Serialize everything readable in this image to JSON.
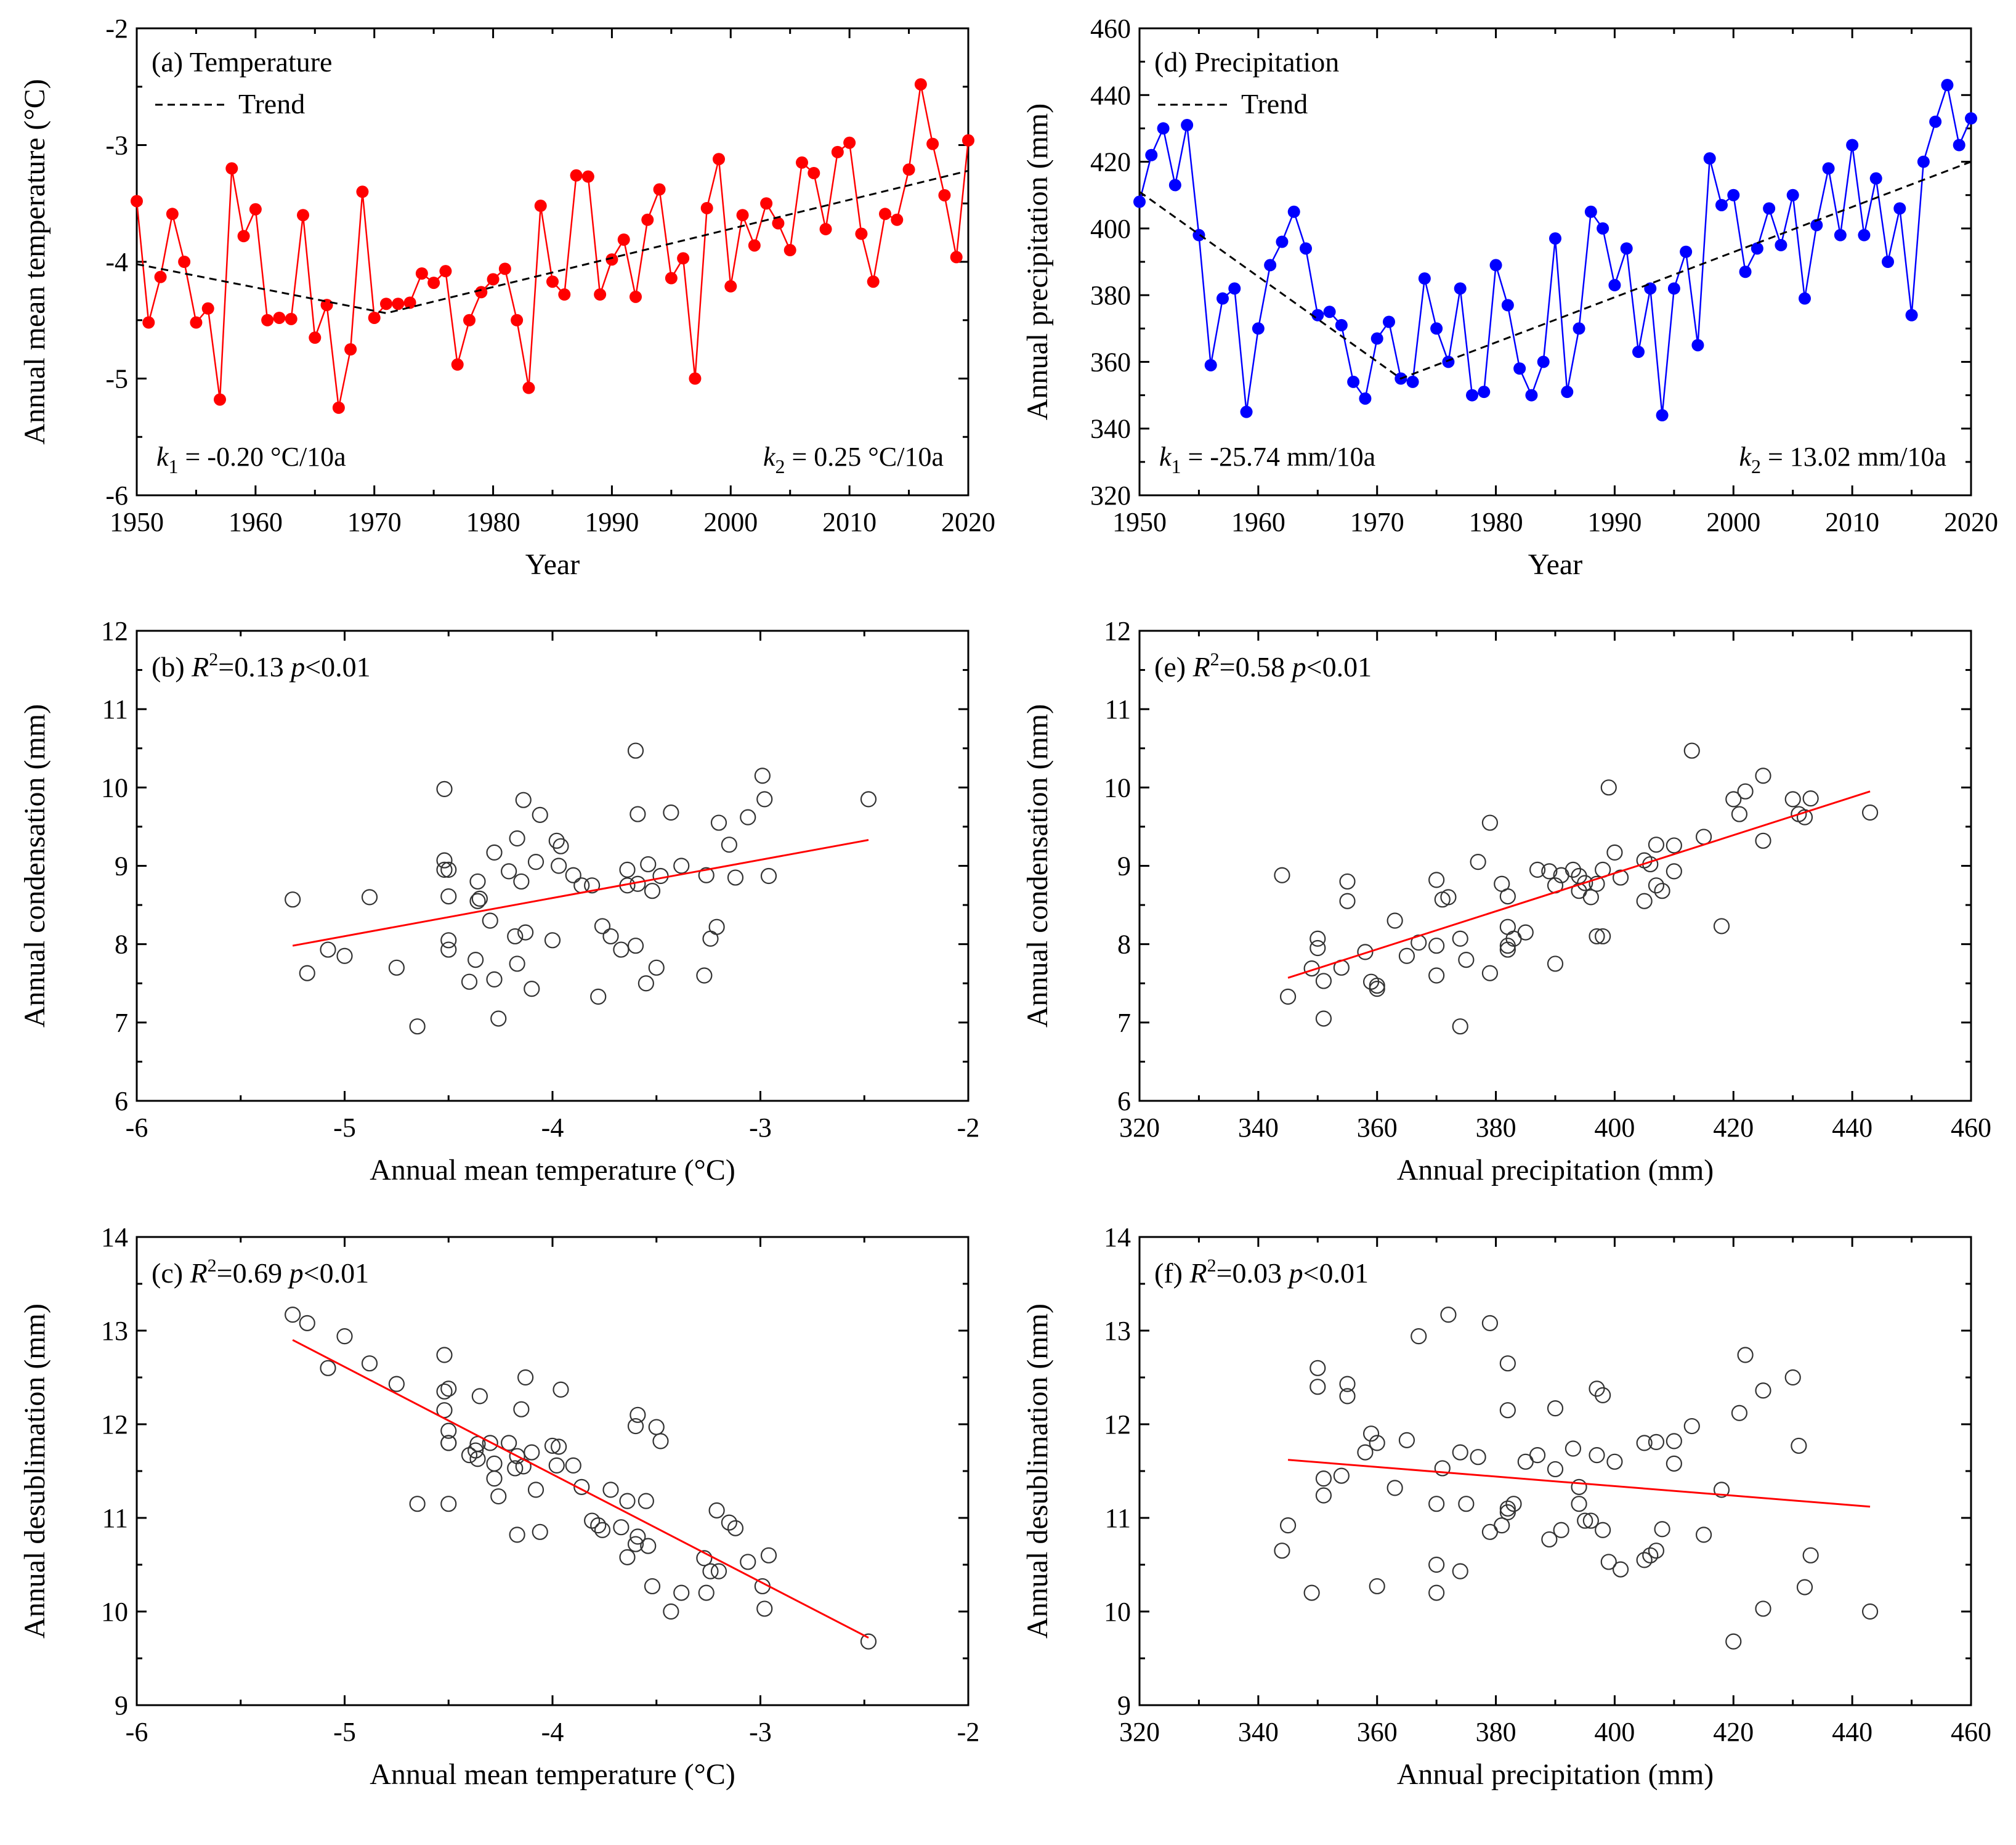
{
  "figure": "Six-panel climate figure",
  "chart_data": [
    {
      "id": "a",
      "type": "line",
      "panel_label": "(a) Temperature",
      "legend": {
        "series": "Trend",
        "placement": "top-left"
      },
      "xlabel": "Year",
      "ylabel": "Annual mean temperature (°C)",
      "xlim": [
        1950,
        2020
      ],
      "ylim": [
        -6,
        -2
      ],
      "xticks": [
        1950,
        1960,
        1970,
        1980,
        1990,
        2000,
        2010,
        2020
      ],
      "yticks": [
        -6,
        -5,
        -4,
        -3,
        -2
      ],
      "color": "#ff0000",
      "x": [
        1950,
        1951,
        1952,
        1953,
        1954,
        1955,
        1956,
        1957,
        1958,
        1959,
        1960,
        1961,
        1962,
        1963,
        1964,
        1965,
        1966,
        1967,
        1968,
        1969,
        1970,
        1971,
        1972,
        1973,
        1974,
        1975,
        1976,
        1977,
        1978,
        1979,
        1980,
        1981,
        1982,
        1983,
        1984,
        1985,
        1986,
        1987,
        1988,
        1989,
        1990,
        1991,
        1992,
        1993,
        1994,
        1995,
        1996,
        1997,
        1998,
        1999,
        2000,
        2001,
        2002,
        2003,
        2004,
        2005,
        2006,
        2007,
        2008,
        2009,
        2010,
        2011,
        2012,
        2013,
        2014,
        2015,
        2016,
        2017,
        2018,
        2019,
        2020
      ],
      "y": [
        -3.48,
        -4.52,
        -4.13,
        -3.59,
        -4.0,
        -4.52,
        -4.4,
        -5.18,
        -3.2,
        -3.78,
        -3.55,
        -4.5,
        -4.48,
        -4.49,
        -3.6,
        -4.65,
        -4.37,
        -5.25,
        -4.75,
        -3.4,
        -4.48,
        -4.36,
        -4.36,
        -4.35,
        -4.1,
        -4.18,
        -4.08,
        -4.88,
        -4.5,
        -4.26,
        -4.15,
        -4.06,
        -4.5,
        -5.08,
        -3.52,
        -4.17,
        -4.28,
        -3.26,
        -3.27,
        -4.28,
        -3.98,
        -3.81,
        -4.3,
        -3.64,
        -3.38,
        -4.14,
        -3.97,
        -5.0,
        -3.54,
        -3.12,
        -4.21,
        -3.6,
        -3.86,
        -3.5,
        -3.67,
        -3.9,
        -3.15,
        -3.24,
        -3.72,
        -3.06,
        -2.98,
        -3.76,
        -4.17,
        -3.59,
        -3.64,
        -3.21,
        -2.48,
        -2.99,
        -3.43,
        -3.96,
        -2.96
      ],
      "trend": {
        "x": [
          1950,
          1971,
          2020
        ],
        "y": [
          -4.02,
          -4.44,
          -3.22
        ]
      },
      "notes": [
        {
          "k": "k",
          "sub": "1",
          "text": " = -0.20 °C/10a"
        },
        {
          "k": "k",
          "sub": "2",
          "text": " = 0.25 °C/10a"
        }
      ]
    },
    {
      "id": "d",
      "type": "line",
      "panel_label": "(d) Precipitation",
      "legend": {
        "series": "Trend",
        "placement": "top-left"
      },
      "xlabel": "Year",
      "ylabel": "Annual precipitation (mm)",
      "xlim": [
        1950,
        2020
      ],
      "ylim": [
        320,
        460
      ],
      "xticks": [
        1950,
        1960,
        1970,
        1980,
        1990,
        2000,
        2010,
        2020
      ],
      "yticks": [
        320,
        340,
        360,
        380,
        400,
        420,
        440,
        460
      ],
      "color": "#0000ff",
      "x": [
        1950,
        1951,
        1952,
        1953,
        1954,
        1955,
        1956,
        1957,
        1958,
        1959,
        1960,
        1961,
        1962,
        1963,
        1964,
        1965,
        1966,
        1967,
        1968,
        1969,
        1970,
        1971,
        1972,
        1973,
        1974,
        1975,
        1976,
        1977,
        1978,
        1979,
        1980,
        1981,
        1982,
        1983,
        1984,
        1985,
        1986,
        1987,
        1988,
        1989,
        1990,
        1991,
        1992,
        1993,
        1994,
        1995,
        1996,
        1997,
        1998,
        1999,
        2000,
        2001,
        2002,
        2003,
        2004,
        2005,
        2006,
        2007,
        2008,
        2009,
        2010,
        2011,
        2012,
        2013,
        2014,
        2015,
        2016,
        2017,
        2018,
        2019,
        2020
      ],
      "y": [
        408,
        422,
        430,
        413,
        431,
        398,
        359,
        379,
        382,
        345,
        370,
        389,
        396,
        405,
        394,
        374,
        375,
        371,
        354,
        349,
        367,
        372,
        355,
        354,
        385,
        370,
        360,
        382,
        350,
        351,
        389,
        377,
        358,
        350,
        360,
        397,
        351,
        370,
        405,
        400,
        383,
        394,
        363,
        382,
        344,
        382,
        393,
        365,
        421,
        407,
        410,
        387,
        394,
        406,
        395,
        410,
        379,
        401,
        418,
        398,
        425,
        398,
        415,
        390,
        406,
        374,
        420,
        432,
        443,
        425,
        433
      ],
      "trend": {
        "x": [
          1950,
          1972,
          2020
        ],
        "y": [
          411,
          355,
          420
        ]
      },
      "notes": [
        {
          "k": "k",
          "sub": "1",
          "text": " = -25.74 mm/10a"
        },
        {
          "k": "k",
          "sub": "2",
          "text": " = 13.02 mm/10a"
        }
      ]
    },
    {
      "id": "b",
      "type": "scatter",
      "panel_label": "(b) ",
      "stats": {
        "r2": "=0.13",
        "p": "<0.01"
      },
      "xlabel": "Annual mean temperature (°C)",
      "ylabel": "Annual condensation (mm)",
      "xlim": [
        -6,
        -2
      ],
      "ylim": [
        6,
        12
      ],
      "xticks": [
        -6,
        -5,
        -4,
        -3,
        -2
      ],
      "yticks": [
        6,
        7,
        8,
        9,
        10,
        11,
        12
      ],
      "fit": {
        "x": [
          -5.25,
          -2.48
        ],
        "y": [
          7.98,
          9.33
        ]
      },
      "x": [
        -5.25,
        -5.18,
        -5.08,
        -5.0,
        -4.88,
        -4.75,
        -4.65,
        -4.52,
        -4.52,
        -4.52,
        -4.5,
        -4.5,
        -4.5,
        -4.5,
        -4.4,
        -4.37,
        -4.36,
        -4.36,
        -4.35,
        -4.3,
        -4.28,
        -4.28,
        -4.26,
        -4.21,
        -4.18,
        -4.17,
        -4.17,
        -4.15,
        -4.14,
        -4.13,
        -4.1,
        -4.08,
        -4.06,
        -4.0,
        -3.98,
        -3.97,
        -3.96,
        -3.9,
        -3.86,
        -3.81,
        -3.78,
        -3.76,
        -3.72,
        -3.67,
        -3.64,
        -3.64,
        -3.6,
        -3.6,
        -3.59,
        -3.59,
        -3.55,
        -3.54,
        -3.52,
        -3.5,
        -3.48,
        -3.43,
        -3.38,
        -3.27,
        -3.26,
        -3.24,
        -3.21,
        -3.2,
        -3.15,
        -3.12,
        -3.06,
        -2.99,
        -2.98,
        -2.96,
        -2.48
      ],
      "y": [
        8.57,
        7.63,
        7.93,
        7.85,
        8.6,
        7.7,
        6.95,
        9.98,
        9.07,
        8.95,
        8.05,
        7.93,
        8.61,
        8.95,
        7.52,
        7.8,
        8.8,
        8.55,
        8.58,
        8.3,
        9.17,
        7.55,
        7.05,
        8.93,
        8.1,
        9.35,
        7.75,
        8.8,
        9.84,
        8.15,
        7.43,
        9.05,
        9.65,
        8.05,
        9.32,
        9.0,
        9.25,
        8.88,
        8.75,
        8.75,
        7.33,
        8.23,
        8.1,
        7.93,
        8.95,
        8.75,
        10.47,
        7.98,
        9.66,
        8.77,
        7.5,
        9.02,
        8.68,
        7.7,
        8.87,
        9.68,
        9.0,
        7.6,
        8.88,
        8.07,
        8.22,
        9.55,
        9.27,
        8.85,
        9.62,
        10.15,
        9.85,
        8.87,
        9.85
      ]
    },
    {
      "id": "e",
      "type": "scatter",
      "panel_label": "(e) ",
      "stats": {
        "r2": "=0.58",
        "p": "<0.01"
      },
      "xlabel": "Annual precipitation (mm)",
      "ylabel": "Annual condensation (mm)",
      "xlim": [
        320,
        460
      ],
      "ylim": [
        6,
        12
      ],
      "xticks": [
        320,
        340,
        360,
        380,
        400,
        420,
        440,
        460
      ],
      "yticks": [
        6,
        7,
        8,
        9,
        10,
        11,
        12
      ],
      "fit": {
        "x": [
          345,
          443
        ],
        "y": [
          7.57,
          9.95
        ]
      },
      "x": [
        344,
        345,
        349,
        350,
        350,
        351,
        351,
        354,
        355,
        355,
        358,
        359,
        360,
        360,
        363,
        365,
        367,
        370,
        370,
        370,
        371,
        372,
        374,
        374,
        375,
        377,
        379,
        379,
        381,
        382,
        382,
        382,
        382,
        383,
        385,
        387,
        389,
        390,
        390,
        391,
        393,
        394,
        394,
        395,
        396,
        397,
        397,
        398,
        398,
        399,
        400,
        401,
        405,
        405,
        406,
        407,
        407,
        408,
        410,
        410,
        413,
        415,
        418,
        420,
        421,
        422,
        425,
        425,
        430,
        431,
        432,
        433,
        443
      ],
      "y": [
        8.88,
        7.33,
        7.69,
        7.95,
        8.07,
        7.05,
        7.53,
        7.7,
        8.55,
        8.8,
        7.9,
        7.52,
        7.47,
        7.43,
        8.3,
        7.85,
        8.02,
        7.6,
        8.82,
        7.98,
        8.57,
        8.6,
        8.07,
        6.95,
        7.8,
        9.05,
        7.63,
        9.55,
        8.77,
        8.61,
        8.22,
        7.93,
        7.98,
        8.07,
        8.15,
        8.95,
        8.93,
        7.75,
        8.75,
        8.88,
        8.95,
        8.87,
        8.68,
        8.78,
        8.6,
        8.1,
        8.77,
        8.1,
        8.95,
        10.0,
        9.17,
        8.85,
        9.07,
        8.55,
        9.02,
        8.75,
        9.27,
        8.68,
        9.26,
        8.93,
        10.47,
        9.37,
        8.23,
        9.85,
        9.66,
        9.95,
        9.32,
        10.15,
        9.85,
        9.66,
        9.62,
        9.86,
        9.68
      ]
    },
    {
      "id": "c",
      "type": "scatter",
      "panel_label": "(c) ",
      "stats": {
        "r2": "=0.69",
        "p": "<0.01"
      },
      "xlabel": "Annual mean temperature (°C)",
      "ylabel": "Annual desublimation (mm)",
      "xlim": [
        -6,
        -2
      ],
      "ylim": [
        9,
        14
      ],
      "xticks": [
        -6,
        -5,
        -4,
        -3,
        -2
      ],
      "yticks": [
        9,
        10,
        11,
        12,
        13,
        14
      ],
      "fit": {
        "x": [
          -5.25,
          -2.48
        ],
        "y": [
          12.9,
          9.72
        ]
      },
      "x": [
        -5.25,
        -5.18,
        -5.08,
        -5.0,
        -4.88,
        -4.75,
        -4.65,
        -4.52,
        -4.52,
        -4.52,
        -4.5,
        -4.5,
        -4.5,
        -4.5,
        -4.5,
        -4.4,
        -4.37,
        -4.36,
        -4.36,
        -4.35,
        -4.3,
        -4.28,
        -4.28,
        -4.26,
        -4.21,
        -4.18,
        -4.17,
        -4.17,
        -4.15,
        -4.14,
        -4.13,
        -4.1,
        -4.08,
        -4.06,
        -4.0,
        -3.98,
        -3.97,
        -3.96,
        -3.9,
        -3.86,
        -3.81,
        -3.78,
        -3.76,
        -3.72,
        -3.67,
        -3.64,
        -3.64,
        -3.6,
        -3.6,
        -3.59,
        -3.59,
        -3.55,
        -3.54,
        -3.52,
        -3.5,
        -3.48,
        -3.43,
        -3.38,
        -3.27,
        -3.26,
        -3.24,
        -3.21,
        -3.2,
        -3.15,
        -3.12,
        -3.06,
        -2.99,
        -2.98,
        -2.96,
        -2.48
      ],
      "y": [
        13.17,
        13.08,
        12.6,
        12.94,
        12.65,
        12.43,
        11.15,
        12.74,
        12.35,
        12.15,
        11.93,
        11.8,
        12.38,
        11.15,
        11.8,
        11.67,
        11.72,
        11.79,
        11.63,
        12.3,
        11.8,
        11.58,
        11.42,
        11.23,
        11.8,
        11.53,
        11.66,
        10.82,
        12.16,
        11.55,
        12.5,
        11.7,
        11.3,
        10.85,
        11.77,
        11.56,
        11.76,
        12.37,
        11.56,
        11.33,
        10.97,
        10.92,
        10.87,
        11.3,
        10.9,
        11.18,
        10.58,
        11.98,
        10.72,
        12.1,
        10.8,
        11.18,
        10.7,
        10.27,
        11.97,
        11.82,
        10.0,
        10.2,
        10.57,
        10.2,
        10.43,
        11.08,
        10.43,
        10.95,
        10.89,
        10.53,
        10.27,
        10.03,
        10.6,
        9.68
      ]
    },
    {
      "id": "f",
      "type": "scatter",
      "panel_label": "(f) ",
      "stats": {
        "r2": "=0.03",
        "p": "<0.01"
      },
      "xlabel": "Annual precipitation (mm)",
      "ylabel": "Annual desublimation (mm)",
      "xlim": [
        320,
        460
      ],
      "ylim": [
        9,
        14
      ],
      "xticks": [
        320,
        340,
        360,
        380,
        400,
        420,
        440,
        460
      ],
      "yticks": [
        9,
        10,
        11,
        12,
        13,
        14
      ],
      "fit": {
        "x": [
          345,
          443
        ],
        "y": [
          11.62,
          11.12
        ]
      },
      "x": [
        344,
        345,
        349,
        350,
        350,
        351,
        351,
        354,
        355,
        355,
        358,
        359,
        360,
        360,
        363,
        365,
        367,
        370,
        370,
        370,
        371,
        372,
        374,
        374,
        375,
        377,
        379,
        379,
        381,
        382,
        382,
        382,
        382,
        383,
        385,
        387,
        389,
        390,
        390,
        391,
        393,
        394,
        394,
        395,
        396,
        397,
        397,
        398,
        398,
        399,
        400,
        401,
        405,
        405,
        406,
        407,
        407,
        408,
        410,
        410,
        413,
        415,
        418,
        420,
        421,
        422,
        425,
        425,
        430,
        431,
        432,
        433,
        443
      ],
      "y": [
        10.65,
        10.92,
        10.2,
        12.6,
        12.4,
        11.42,
        11.24,
        11.45,
        12.43,
        12.3,
        11.7,
        11.9,
        11.8,
        10.27,
        11.32,
        11.83,
        12.94,
        11.15,
        10.2,
        10.5,
        11.53,
        13.17,
        11.7,
        10.43,
        11.15,
        11.65,
        10.85,
        13.08,
        10.92,
        12.15,
        12.65,
        11.06,
        11.1,
        11.15,
        11.6,
        11.67,
        10.77,
        11.52,
        12.17,
        10.87,
        11.74,
        11.33,
        11.15,
        10.97,
        10.97,
        12.38,
        11.67,
        12.31,
        10.87,
        10.53,
        11.6,
        10.45,
        11.8,
        10.55,
        10.6,
        10.65,
        11.81,
        10.88,
        11.82,
        11.58,
        11.98,
        10.82,
        11.3,
        9.68,
        12.12,
        12.74,
        10.03,
        12.36,
        12.5,
        11.77,
        10.26,
        10.6,
        10.0
      ]
    }
  ]
}
